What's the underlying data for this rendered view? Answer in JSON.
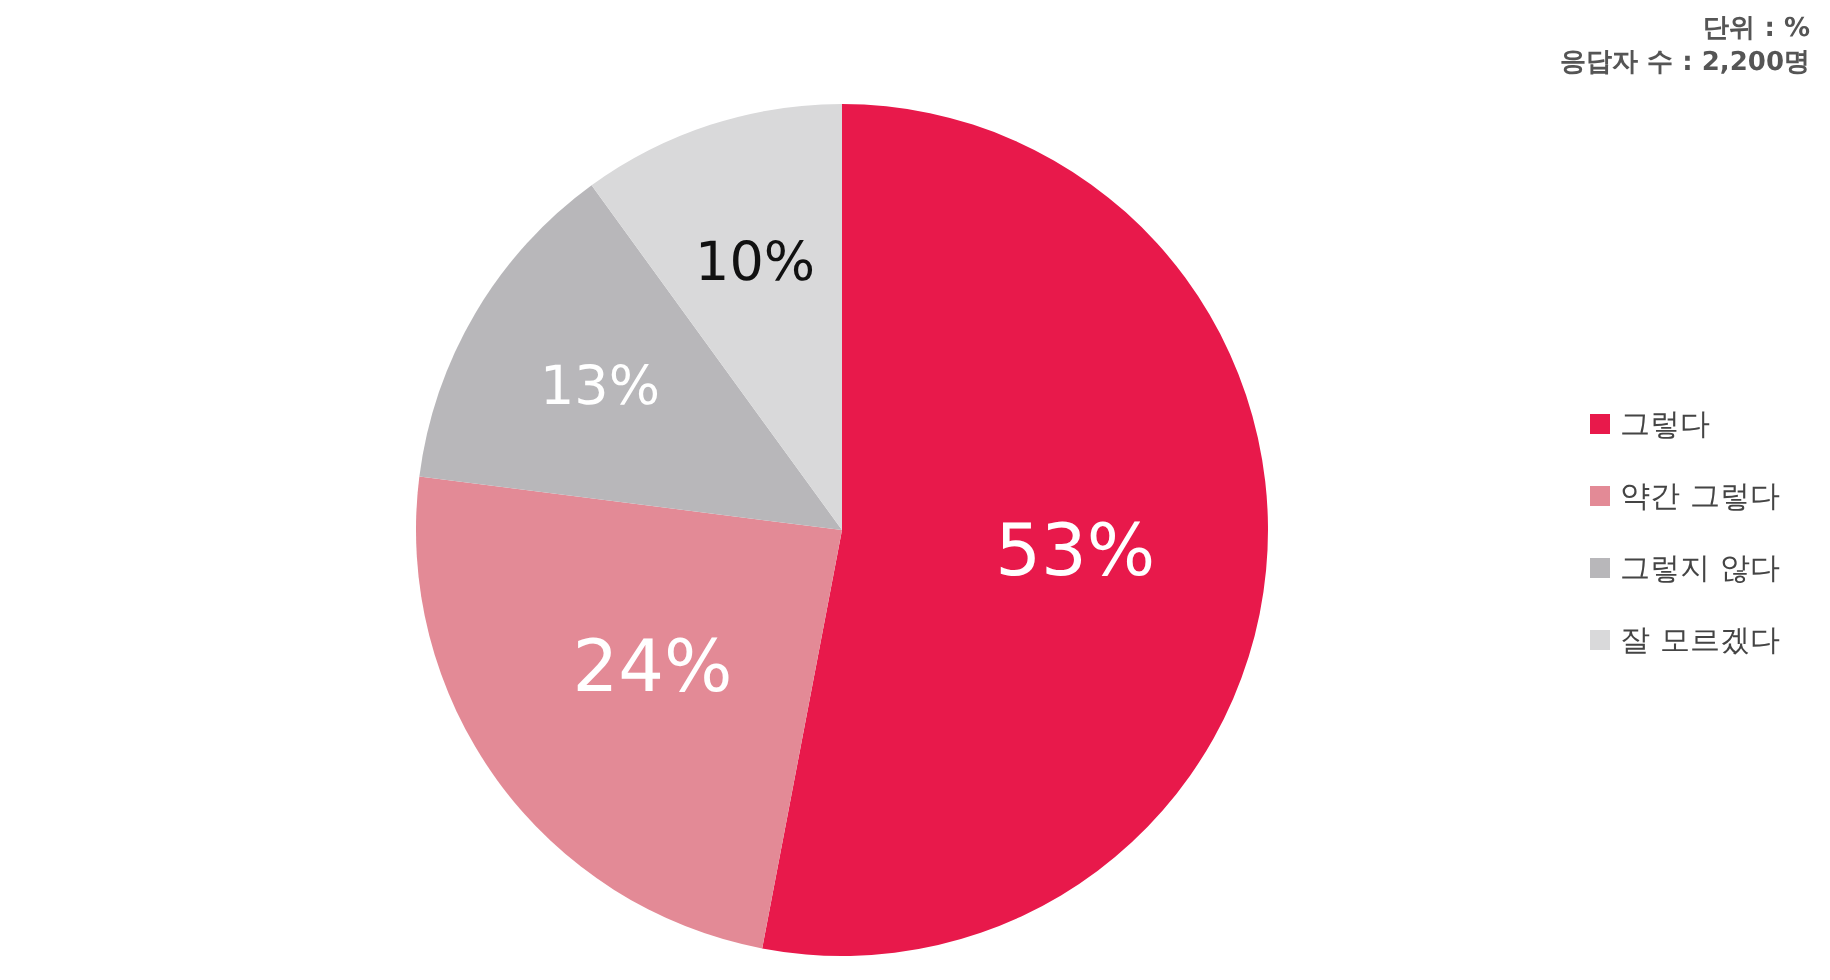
{
  "chart_data": {
    "type": "pie",
    "categories": [
      "그렇다",
      "약간 그렇다",
      "그렇지 않다",
      "잘 모르겠다"
    ],
    "values": [
      53,
      24,
      13,
      10
    ],
    "colors": [
      "#e8194b",
      "#e38a96",
      "#b8b7ba",
      "#d9d9da"
    ],
    "value_labels": [
      "53%",
      "24%",
      "13%",
      "10%"
    ],
    "legend": "right",
    "annotations": [
      "단위 : %",
      "응답자 수 : 2,200명"
    ]
  }
}
